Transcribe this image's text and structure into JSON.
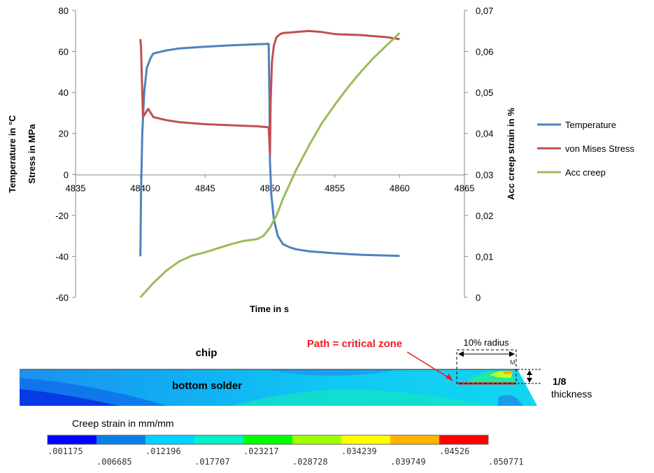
{
  "chart_data": {
    "type": "line",
    "title": "",
    "xlabel": "Time in s",
    "ylabel_left": "Temperature in °C\nStress in MPa",
    "ylabel_right": "Acc creep strain in %",
    "xlim": [
      4835,
      4865
    ],
    "xticks": [
      "4835",
      "4840",
      "4845",
      "4850",
      "4855",
      "4860",
      "4865"
    ],
    "ylim_left": [
      -60,
      80
    ],
    "yticks_left": [
      "-60",
      "-40",
      "-20",
      "0",
      "20",
      "40",
      "60",
      "80"
    ],
    "ylim_right": [
      0,
      0.07
    ],
    "yticks_right": [
      "0",
      "0,01",
      "0,02",
      "0,03",
      "0,04",
      "0,05",
      "0,06",
      "0,07"
    ],
    "grid": false,
    "legend_position": "right",
    "series": [
      {
        "name": "Temperature",
        "axis": "left",
        "color": "#4F81BD",
        "x": [
          4840,
          4840.05,
          4840.15,
          4840.3,
          4840.5,
          4840.8,
          4841,
          4842,
          4843,
          4845,
          4847,
          4849,
          4849.9,
          4849.95,
          4850,
          4850.1,
          4850.3,
          4850.6,
          4851,
          4851.5,
          4852,
          4853,
          4855,
          4857,
          4860
        ],
        "y": [
          -40,
          -10,
          20,
          40,
          52,
          57,
          59,
          60.5,
          61.5,
          62.3,
          63,
          63.5,
          63.7,
          40,
          6,
          -10,
          -22,
          -30,
          -34,
          -35.5,
          -36.5,
          -37.5,
          -38.5,
          -39.2,
          -39.8
        ]
      },
      {
        "name": "von Mises Stress",
        "axis": "left",
        "color": "#C0504D",
        "x": [
          4840,
          4840.05,
          4840.2,
          4840.4,
          4840.6,
          4840.8,
          4841,
          4842,
          4843,
          4845,
          4847,
          4849,
          4849.9,
          4850,
          4850.05,
          4850.15,
          4850.3,
          4850.5,
          4850.8,
          4851,
          4852,
          4853,
          4854,
          4855,
          4857,
          4859,
          4860
        ],
        "y": [
          66,
          62,
          28,
          30,
          32,
          30,
          28,
          26.5,
          25.5,
          24.5,
          24,
          23.5,
          23,
          10,
          35,
          55,
          63,
          67,
          68.5,
          69,
          69.5,
          70,
          69.5,
          68.5,
          68,
          67,
          66
        ]
      },
      {
        "name": "Acc creep",
        "axis": "right",
        "color": "#9BBB59",
        "x": [
          4840,
          4841,
          4842,
          4843,
          4844,
          4845,
          4846,
          4847,
          4848,
          4849,
          4849.5,
          4850,
          4850.5,
          4851,
          4851.5,
          4852,
          4853,
          4854,
          4855,
          4856,
          4857,
          4858,
          4859,
          4860
        ],
        "y": [
          0,
          0.0035,
          0.0065,
          0.0088,
          0.0102,
          0.011,
          0.012,
          0.013,
          0.0138,
          0.0142,
          0.015,
          0.017,
          0.02,
          0.024,
          0.0275,
          0.031,
          0.037,
          0.0425,
          0.047,
          0.0512,
          0.055,
          0.0585,
          0.0615,
          0.0645
        ]
      }
    ]
  },
  "figure": {
    "chip_label": "chip",
    "solder_label": "bottom solder",
    "path_label": "Path = critical zone",
    "radius_label": "10% radius",
    "thickness_fraction": "1/8",
    "thickness_word": "thickness",
    "accent_color": "#EE1C25"
  },
  "colorbar": {
    "title": "Creep strain in mm/mm",
    "colors": [
      "#0000FF",
      "#0A7FE6",
      "#00D2FF",
      "#00F0C8",
      "#00FF00",
      "#A0FF00",
      "#FFFF00",
      "#FFB400",
      "#FF0000"
    ],
    "labels_top": [
      ".001175",
      ".012196",
      ".023217",
      ".034239",
      ".04526"
    ],
    "labels_bottom": [
      ".006685",
      ".017707",
      ".028728",
      ".039749",
      ".050771"
    ]
  }
}
